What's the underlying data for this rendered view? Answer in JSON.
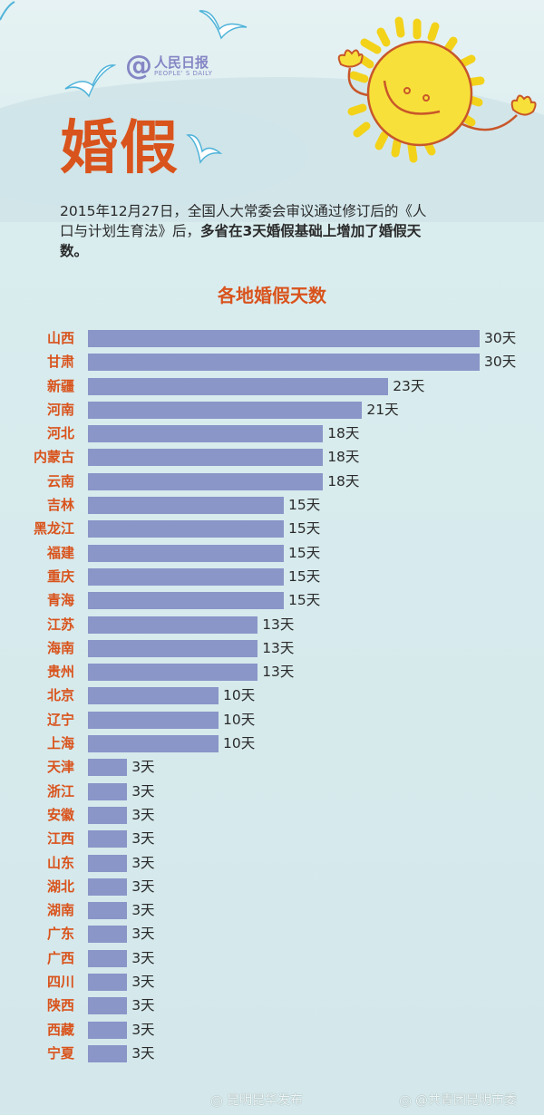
{
  "header": {
    "logo_at": "@",
    "logo_cn": "人民日报",
    "logo_en": "PEOPLE' S DAILY",
    "title": "婚假"
  },
  "intro": {
    "text_normal": "2015年12月27日，全国人大常委会审议通过修订后的《人口与计划生育法》后，",
    "text_bold": "多省在3天婚假基础上增加了婚假天数。"
  },
  "colors": {
    "title": "#d9531c",
    "bar": "#8a95c8",
    "label": "#d9531c",
    "value_text": "#2a2a2a"
  },
  "chart_data": {
    "type": "bar",
    "orientation": "horizontal",
    "title": "各地婚假天数",
    "xlabel": "",
    "ylabel": "",
    "unit": "天",
    "xlim": [
      0,
      30
    ],
    "grid": false,
    "legend": null,
    "categories": [
      "山西",
      "甘肃",
      "新疆",
      "河南",
      "河北",
      "内蒙古",
      "云南",
      "吉林",
      "黑龙江",
      "福建",
      "重庆",
      "青海",
      "江苏",
      "海南",
      "贵州",
      "北京",
      "辽宁",
      "上海",
      "天津",
      "浙江",
      "安徽",
      "江西",
      "山东",
      "湖北",
      "湖南",
      "广东",
      "广西",
      "四川",
      "陕西",
      "西藏",
      "宁夏"
    ],
    "values": [
      30,
      30,
      23,
      21,
      18,
      18,
      18,
      15,
      15,
      15,
      15,
      15,
      13,
      13,
      13,
      10,
      10,
      10,
      3,
      3,
      3,
      3,
      3,
      3,
      3,
      3,
      3,
      3,
      3,
      3,
      3
    ],
    "value_labels": [
      "30天",
      "30天",
      "23天",
      "21天",
      "18天",
      "18天",
      "18天",
      "15天",
      "15天",
      "15天",
      "15天",
      "15天",
      "13天",
      "13天",
      "13天",
      "10天",
      "10天",
      "10天",
      "3天",
      "3天",
      "3天",
      "3天",
      "3天",
      "3天",
      "3天",
      "3天",
      "3天",
      "3天",
      "3天",
      "3天",
      "3天"
    ]
  },
  "watermarks": [
    {
      "icon": "weibo-icon",
      "text": "昆明昆华发布"
    },
    {
      "icon": "weibo-icon",
      "text": "@共青团昆明市委"
    }
  ]
}
